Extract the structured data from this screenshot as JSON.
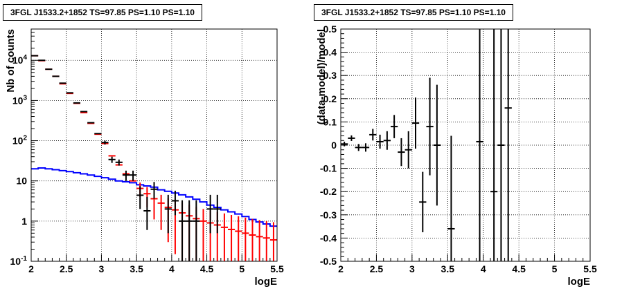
{
  "chart_data": [
    {
      "type": "scatter",
      "title": "3FGL J1533.2+1852 TS=97.85 PS=1.10 PS=1.10",
      "xlabel": "logE",
      "ylabel": "Nb of counts",
      "xlim": [
        2,
        5.5
      ],
      "ylim": [
        0.1,
        60000
      ],
      "yscale": "log",
      "grid": true,
      "x_ticks": [
        "2",
        "2.5",
        "3",
        "3.5",
        "4",
        "4.5",
        "5",
        "5.5"
      ],
      "y_ticks": [
        {
          "v": 0.1,
          "t": "10",
          "sup": "-1"
        },
        {
          "v": 1,
          "t": "1",
          "sup": ""
        },
        {
          "v": 10,
          "t": "10",
          "sup": ""
        },
        {
          "v": 100,
          "t": "10",
          "sup": "2"
        },
        {
          "v": 1000,
          "t": "10",
          "sup": "3"
        },
        {
          "v": 10000,
          "t": "10",
          "sup": "4"
        }
      ],
      "bin_edges": [
        2.0,
        2.1,
        2.2,
        2.3,
        2.4,
        2.5,
        2.6,
        2.7,
        2.8,
        2.9,
        3.0,
        3.1,
        3.2,
        3.3,
        3.4,
        3.5,
        3.6,
        3.7,
        3.8,
        3.9,
        4.0,
        4.1,
        4.2,
        4.3,
        4.4,
        4.5,
        4.6,
        4.7,
        4.8,
        4.9,
        5.0,
        5.1,
        5.2,
        5.3,
        5.4,
        5.5
      ],
      "series": [
        {
          "color": "#ff0000",
          "style": "model-points",
          "x": [
            2.05,
            2.15,
            2.25,
            2.35,
            2.45,
            2.55,
            2.65,
            2.75,
            2.85,
            2.95,
            3.05,
            3.15,
            3.25,
            3.35,
            3.45,
            3.55,
            3.65,
            3.75,
            3.85,
            3.95,
            4.05,
            4.15,
            4.25,
            4.35,
            4.45,
            4.55,
            4.65,
            4.75,
            4.85,
            4.95,
            5.05,
            5.15,
            5.25,
            5.35,
            5.45
          ],
          "y": [
            13000,
            9800,
            6000,
            4000,
            2600,
            1500,
            850,
            500,
            270,
            145,
            85,
            42,
            25,
            15,
            10,
            6.5,
            4.8,
            3.6,
            2.8,
            2.2,
            1.9,
            1.6,
            1.35,
            1.15,
            1.0,
            0.9,
            0.8,
            0.7,
            0.62,
            0.56,
            0.5,
            0.45,
            0.41,
            0.38,
            0.34
          ],
          "err_lo": [
            0,
            0,
            0,
            0,
            0,
            0,
            0,
            0,
            0,
            0,
            0,
            0,
            0,
            0,
            0,
            2.5,
            2.6,
            2.5,
            2.2,
            1.9,
            1.75,
            1.55,
            1.32,
            1.14,
            0.99,
            0.89,
            0.79,
            0.69,
            0.61,
            0.55,
            0.49,
            0.44,
            0.4,
            0.37,
            0.33
          ],
          "err_hi": [
            0,
            0,
            0,
            0,
            0,
            0,
            0,
            0,
            0,
            0,
            0,
            0,
            0,
            0,
            0,
            2.6,
            2.2,
            1.9,
            1.7,
            1.5,
            1.4,
            1.3,
            1.2,
            1.1,
            1.0,
            0.95,
            0.9,
            0.85,
            0.8,
            0.76,
            0.72,
            0.68,
            0.65,
            0.62,
            0.6
          ]
        },
        {
          "color": "#000000",
          "style": "data-points",
          "x": [
            2.05,
            2.15,
            2.25,
            2.35,
            2.45,
            2.55,
            2.65,
            2.75,
            2.85,
            2.95,
            3.05,
            3.15,
            3.25,
            3.35,
            3.45,
            3.55,
            3.65,
            3.75,
            3.95,
            4.05,
            4.15,
            4.25,
            4.35,
            4.55,
            4.65
          ],
          "y": [
            13000,
            10000,
            6000,
            4000,
            2700,
            1550,
            870,
            530,
            280,
            150,
            90,
            34,
            29,
            14,
            14,
            4.4,
            1.8,
            6.2,
            2.0,
            3.2,
            1.0,
            1.0,
            1.0,
            2.0,
            2.0
          ],
          "err_lo": [
            0,
            0,
            0,
            0,
            0,
            0,
            0,
            0,
            0,
            0,
            10,
            6,
            5,
            4,
            4,
            2.4,
            1.2,
            2.6,
            1.5,
            1.8,
            0.9,
            0.9,
            0.9,
            1.5,
            1.5
          ],
          "err_hi": [
            0,
            0,
            0,
            0,
            0,
            0,
            0,
            0,
            0,
            0,
            10,
            6,
            5,
            4,
            4,
            3.0,
            2.2,
            3.2,
            2.5,
            2.5,
            2.3,
            2.3,
            2.3,
            2.5,
            2.5
          ]
        },
        {
          "color": "#0000ff",
          "style": "step",
          "values": [
            20,
            21,
            20,
            19,
            18,
            17,
            16,
            15,
            14,
            13,
            12,
            11,
            10,
            9.5,
            9,
            8,
            7.5,
            7,
            6,
            5.5,
            5,
            4.5,
            4,
            3.5,
            3,
            2.5,
            2.2,
            1.9,
            1.7,
            1.5,
            1.3,
            1.1,
            0.95,
            0.85,
            0.75
          ]
        }
      ]
    },
    {
      "type": "scatter",
      "title": "3FGL J1533.2+1852 TS=97.85 PS=1.10 PS=1.10",
      "xlabel": "logE",
      "ylabel": "(data-model)/model",
      "xlim": [
        2,
        5.5
      ],
      "ylim": [
        -0.5,
        0.5
      ],
      "grid": true,
      "x_ticks": [
        "2",
        "2.5",
        "3",
        "3.5",
        "4",
        "4.5",
        "5",
        "5.5"
      ],
      "y_ticks": [
        "-0.5",
        "-0.4",
        "-0.3",
        "-0.2",
        "-0.1",
        "0",
        "0.1",
        "0.2",
        "0.3",
        "0.4",
        "0.5"
      ],
      "series": [
        {
          "color": "#000000",
          "x": [
            2.05,
            2.15,
            2.25,
            2.35,
            2.45,
            2.55,
            2.65,
            2.75,
            2.85,
            2.95,
            3.05,
            3.15,
            3.25,
            3.35,
            3.55,
            3.95,
            4.15,
            4.25,
            4.35
          ],
          "y": [
            0.005,
            0.03,
            -0.01,
            -0.01,
            0.045,
            0.015,
            0.02,
            0.08,
            -0.03,
            -0.02,
            0.095,
            -0.245,
            0.08,
            0.0,
            -0.36,
            0.015,
            -0.2,
            0.0,
            0.16
          ],
          "err": [
            0.01,
            0.012,
            0.015,
            0.018,
            0.025,
            0.03,
            0.04,
            0.05,
            0.06,
            0.08,
            0.11,
            0.13,
            0.21,
            0.26,
            0.4,
            1.5,
            1.5,
            1.5,
            1.5
          ]
        }
      ]
    }
  ]
}
